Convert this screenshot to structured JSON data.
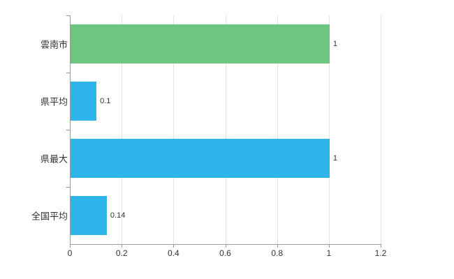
{
  "chart_data": {
    "type": "bar",
    "orientation": "horizontal",
    "title": "",
    "xlabel": "",
    "ylabel": "",
    "categories": [
      "雲南市",
      "県平均",
      "県最大",
      "全国平均"
    ],
    "values": [
      1,
      0.1,
      1,
      0.14
    ],
    "value_labels": [
      "1",
      "0.1",
      "1",
      "0.14"
    ],
    "bar_colors": [
      "#6cc680",
      "#2eb5ea",
      "#2eb5ea",
      "#2eb5ea"
    ],
    "x_ticks": [
      "0",
      "0.2",
      "0.4",
      "0.6",
      "0.8",
      "1",
      "1.2"
    ],
    "xlim": [
      0,
      1.2
    ],
    "grid": true,
    "legend": "none",
    "colors": {
      "green_bar": "#6cc680",
      "blue_bar": "#2eb5ea",
      "axis": "#9b9b9b",
      "gridline": "#e4e4e4",
      "text": "#333333"
    }
  }
}
